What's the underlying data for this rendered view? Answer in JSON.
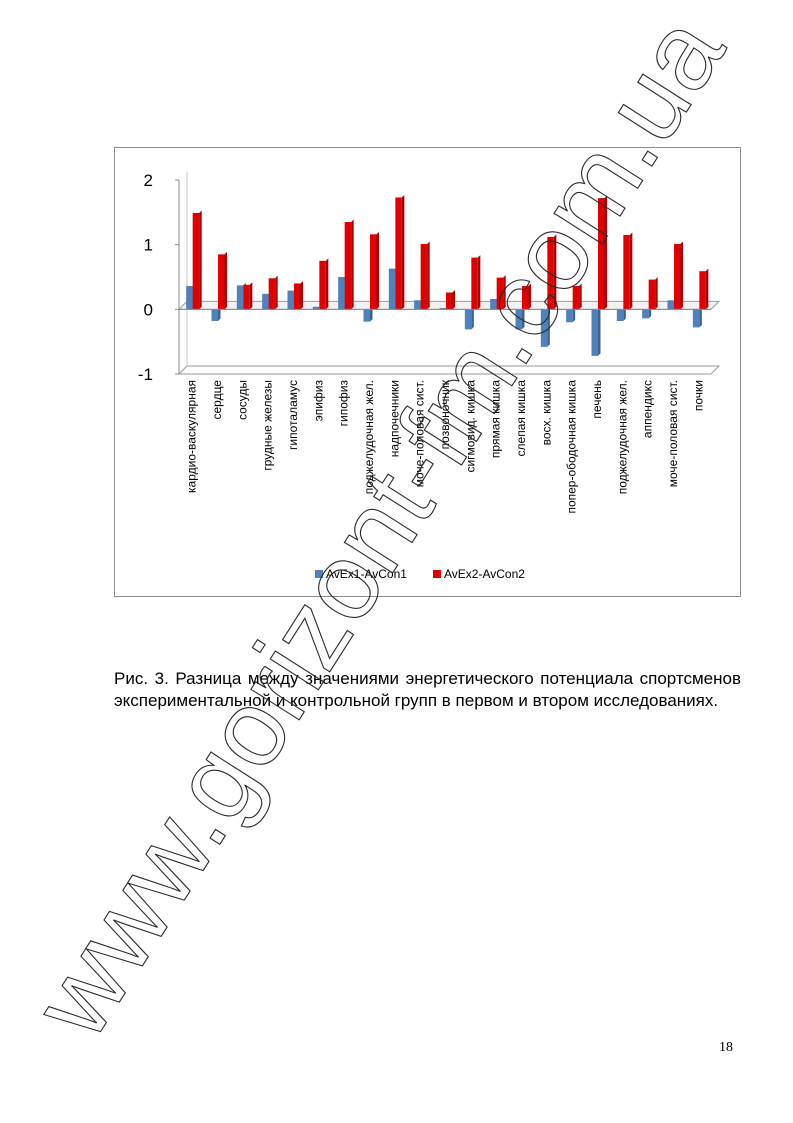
{
  "chart_data": {
    "type": "bar",
    "categories": [
      "кардио-васкулярная",
      "сердце",
      "сосуды",
      "грудные железы",
      "гипоталамус",
      "эпифиз",
      "гипофиз",
      "поджелудочная жел.",
      "надпочечники",
      "моче-половая сист.",
      "позвоночник",
      "сигмовид. кишка",
      "прямая кишка",
      "слепая кишка",
      "восх. кишка",
      "попер-ободочная кишка",
      "печень",
      "поджелудочная жел.",
      "аппендикс",
      "моче-половая сист.",
      "почки"
    ],
    "series": [
      {
        "name": "AvEx1-AvCon1",
        "color": "#4f81bd",
        "values": [
          0.36,
          -0.18,
          0.37,
          0.24,
          0.29,
          0.04,
          0.5,
          -0.19,
          0.63,
          0.14,
          0.02,
          -0.31,
          0.16,
          -0.31,
          -0.58,
          -0.2,
          -0.72,
          -0.18,
          -0.14,
          0.14,
          -0.28
        ]
      },
      {
        "name": "AvEx2-AvCon2",
        "color": "#e00000",
        "values": [
          1.49,
          0.85,
          0.38,
          0.48,
          0.4,
          0.75,
          1.35,
          1.16,
          1.73,
          1.01,
          0.26,
          0.8,
          0.49,
          0.36,
          1.12,
          0.36,
          1.72,
          1.15,
          0.46,
          1.01,
          0.59
        ]
      }
    ],
    "yticks": [
      2,
      1,
      0,
      -1
    ],
    "ylim": [
      -1,
      2
    ],
    "title": "",
    "xlabel": "",
    "ylabel": "",
    "legend": "bottom",
    "grid": false
  },
  "caption": "Рис. 3. Разница между значениями энергетического потенциала спортсменов экспериментальной и контрольной групп в первом и втором исследованиях.",
  "page_number": "18",
  "watermark": "www.gorizont-fm.com.ua"
}
